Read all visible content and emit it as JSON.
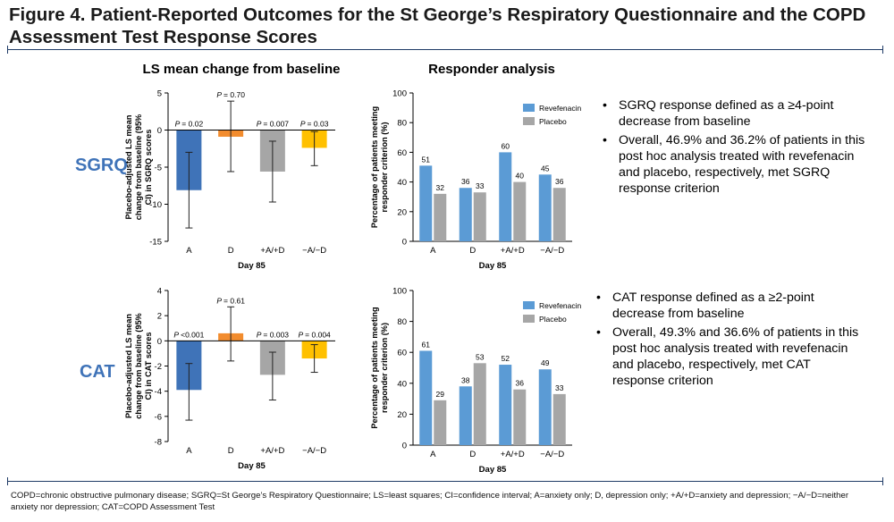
{
  "title": "Figure 4. Patient-Reported Outcomes for the St George’s Respiratory Questionnaire and the COPD Assessment Test Response Scores",
  "column_headers": {
    "left": "LS mean change from baseline",
    "right": "Responder analysis"
  },
  "row_labels": {
    "sgrq": "SGRQ",
    "cat": "CAT"
  },
  "notes": {
    "sgrq": [
      "SGRQ response defined as a ≥4-point decrease from baseline",
      "Overall, 46.9% and 36.2% of patients in this post hoc analysis treated with revefenacin and placebo, respectively, met SGRQ response criterion"
    ],
    "cat": [
      "CAT response defined as a ≥2-point decrease from baseline",
      "Overall, 49.3% and 36.6% of patients in this post hoc analysis treated with revefenacin and placebo, respectively, met CAT response criterion"
    ]
  },
  "footnote": "COPD=chronic obstructive pulmonary disease; SGRQ=St George’s Respiratory Questionnaire; LS=least squares; CI=confidence interval; A=anxiety only; D, depression only; +A/+D=anxiety and depression; −A/−D=neither anxiety nor depression; CAT=COPD Assessment Test",
  "colors": {
    "A": "#3f73b8",
    "D": "#f28c2e",
    "AD": "#a6a6a6",
    "none": "#ffc000",
    "revefenacin": "#5b9bd5",
    "placebo": "#a6a6a6",
    "row_label": "#3f73b8",
    "rule": "#1f3b66"
  },
  "chart_data": [
    {
      "id": "sgrq_ls",
      "type": "bar",
      "categories": [
        "A",
        "D",
        "+A/+D",
        "−A/−D"
      ],
      "values": [
        -8.1,
        -0.9,
        -5.6,
        -2.4
      ],
      "ci_lower": [
        -13.2,
        -5.6,
        -9.7,
        -4.8
      ],
      "ci_upper": [
        -3.0,
        3.9,
        -1.5,
        -0.2
      ],
      "p_labels": [
        "= 0.02",
        "= 0.70",
        "= 0.007",
        "= 0.03"
      ],
      "color_keys": [
        "A",
        "D",
        "AD",
        "none"
      ],
      "xlabel": "Day 85",
      "ylabel": "Placebo-adjusted LS mean change from baseline (95% CI) in SGRQ scores",
      "ylim": [
        -15,
        5
      ],
      "yticks": [
        5,
        0,
        -5,
        -10,
        -15
      ]
    },
    {
      "id": "sgrq_resp",
      "type": "bar",
      "categories": [
        "A",
        "D",
        "+A/+D",
        "−A/−D"
      ],
      "series": [
        {
          "name": "Revefenacin",
          "values": [
            51,
            36,
            60,
            45
          ]
        },
        {
          "name": "Placebo",
          "values": [
            32,
            33,
            40,
            36
          ]
        }
      ],
      "xlabel": "Day 85",
      "ylabel": "Percentage of patients meeting responder criterion (%)",
      "ylim": [
        0,
        100
      ],
      "yticks": [
        0,
        20,
        40,
        60,
        80,
        100
      ],
      "legend": "top-right"
    },
    {
      "id": "cat_ls",
      "type": "bar",
      "categories": [
        "A",
        "D",
        "+A/+D",
        "−A/−D"
      ],
      "values": [
        -3.9,
        0.6,
        -2.7,
        -1.4
      ],
      "ci_lower": [
        -6.3,
        -1.6,
        -4.7,
        -2.5
      ],
      "ci_upper": [
        -1.8,
        2.7,
        -0.9,
        -0.3
      ],
      "p_labels": [
        "<0.001",
        "= 0.61",
        "= 0.003",
        "= 0.004"
      ],
      "color_keys": [
        "A",
        "D",
        "AD",
        "none"
      ],
      "xlabel": "Day 85",
      "ylabel": "Placebo-adjusted LS mean change from baseline (95% CI) in CAT scores",
      "ylim": [
        -8,
        4
      ],
      "yticks": [
        4,
        2,
        0,
        -2,
        -4,
        -6,
        -8
      ]
    },
    {
      "id": "cat_resp",
      "type": "bar",
      "categories": [
        "A",
        "D",
        "+A/+D",
        "−A/−D"
      ],
      "series": [
        {
          "name": "Revefenacin",
          "values": [
            61,
            38,
            52,
            49
          ]
        },
        {
          "name": "Placebo",
          "values": [
            29,
            53,
            36,
            33
          ]
        }
      ],
      "xlabel": "Day 85",
      "ylabel": "Percentage of patients meeting responder criterion (%)",
      "ylim": [
        0,
        100
      ],
      "yticks": [
        0,
        20,
        40,
        60,
        80,
        100
      ],
      "legend": "top-right"
    }
  ]
}
